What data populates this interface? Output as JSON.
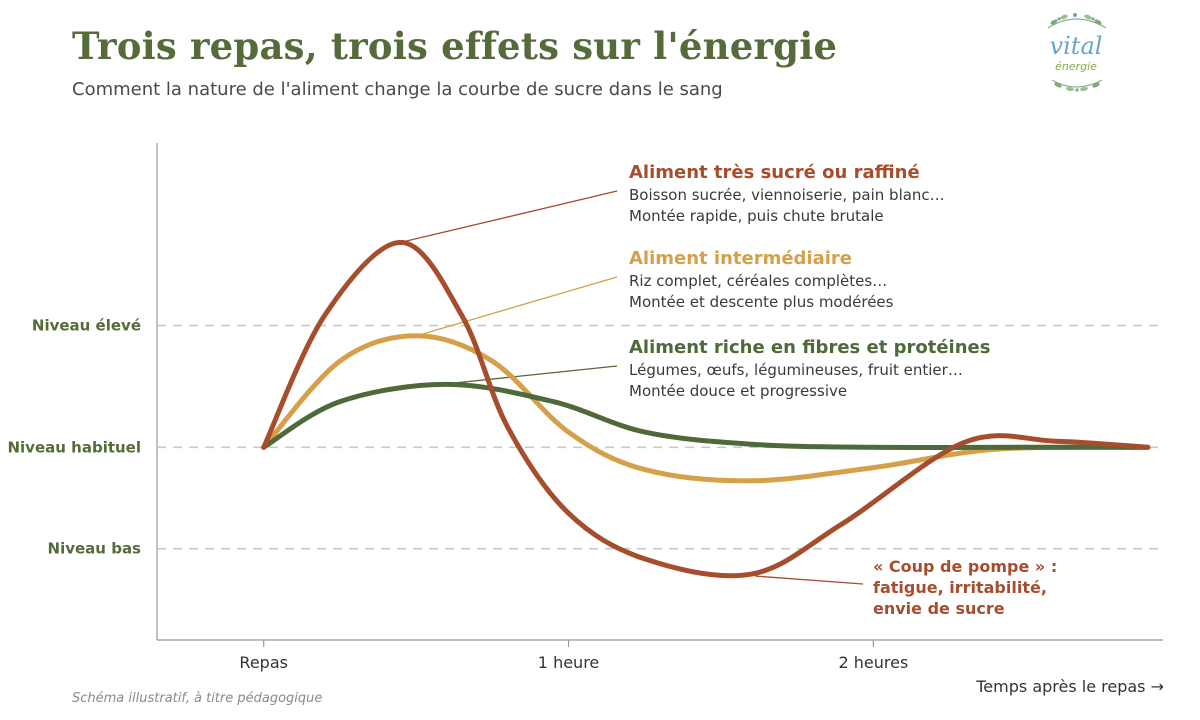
{
  "header": {
    "title": "Trois repas, trois effets sur l'énergie",
    "subtitle": "Comment la nature de l'aliment change la courbe de sucre dans le sang"
  },
  "logo": {
    "word1": "vital",
    "word2": "énergie",
    "icon": "leaf-branch-icon"
  },
  "footnote": "Schéma illustratif, à titre pédagogique",
  "colors": {
    "raffine": "#a64d2e",
    "intermediaire": "#d4a04a",
    "fibres": "#4e6a3a",
    "axis": "#999999",
    "grid": "#c8c8c8"
  },
  "chart_data": {
    "type": "line",
    "xlabel": "Temps après le repas →",
    "xlim": [
      -0.7,
      5.9
    ],
    "ylim": [
      -1.9,
      3.0
    ],
    "xticks": [
      {
        "label": "Repas",
        "value": 0
      },
      {
        "label": "1 heure",
        "value": 2
      },
      {
        "label": "2 heures",
        "value": 4
      }
    ],
    "ylevels": [
      {
        "label": "Niveau élevé",
        "value": 1.2
      },
      {
        "label": "Niveau habituel",
        "value": 0
      },
      {
        "label": "Niveau bas",
        "value": -1
      }
    ],
    "series": [
      {
        "name": "Aliment très sucré ou raffiné",
        "color": "#a64d2e",
        "points": [
          [
            0,
            0
          ],
          [
            0.4,
            1.3
          ],
          [
            0.9,
            2.02
          ],
          [
            1.3,
            1.3
          ],
          [
            1.6,
            0.2
          ],
          [
            2.0,
            -0.65
          ],
          [
            2.5,
            -1.1
          ],
          [
            3.2,
            -1.25
          ],
          [
            3.8,
            -0.75
          ],
          [
            4.6,
            0.05
          ],
          [
            5.2,
            0.06
          ],
          [
            5.8,
            0
          ]
        ]
      },
      {
        "name": "Aliment intermédiaire",
        "color": "#d4a04a",
        "points": [
          [
            0,
            0
          ],
          [
            0.5,
            0.85
          ],
          [
            1.0,
            1.1
          ],
          [
            1.5,
            0.85
          ],
          [
            2.0,
            0.15
          ],
          [
            2.5,
            -0.22
          ],
          [
            3.2,
            -0.33
          ],
          [
            4.0,
            -0.2
          ],
          [
            4.8,
            -0.02
          ],
          [
            5.8,
            0
          ]
        ]
      },
      {
        "name": "Aliment riche en fibres et protéines",
        "color": "#4e6a3a",
        "points": [
          [
            0,
            0
          ],
          [
            0.5,
            0.45
          ],
          [
            1.2,
            0.62
          ],
          [
            1.9,
            0.45
          ],
          [
            2.5,
            0.15
          ],
          [
            3.2,
            0.03
          ],
          [
            4.0,
            0
          ],
          [
            5.0,
            0
          ],
          [
            5.8,
            0
          ]
        ]
      }
    ],
    "annotations": [
      {
        "title": "Aliment très sucré ou raffiné",
        "color": "#a64d2e",
        "lines": [
          "Boisson sucrée, viennoiserie, pain blanc…",
          "Montée rapide, puis chute brutale"
        ],
        "anchor": [
          0.9,
          2.02
        ]
      },
      {
        "title": "Aliment intermédiaire",
        "color": "#d4a04a",
        "lines": [
          "Riz complet, céréales complètes…",
          "Montée et descente plus modérées"
        ],
        "anchor": [
          1.0,
          1.1
        ]
      },
      {
        "title": "Aliment riche en fibres et protéines",
        "color": "#4e6a3a",
        "lines": [
          "Légumes, œufs, légumineuses, fruit entier…",
          "Montée douce et progressive"
        ],
        "anchor": [
          1.2,
          0.62
        ]
      }
    ],
    "dip_annotation": {
      "lines": [
        "« Coup de pompe » :",
        "fatigue, irritabilité,",
        "envie de sucre"
      ],
      "anchor": [
        3.2,
        -1.25
      ]
    }
  }
}
